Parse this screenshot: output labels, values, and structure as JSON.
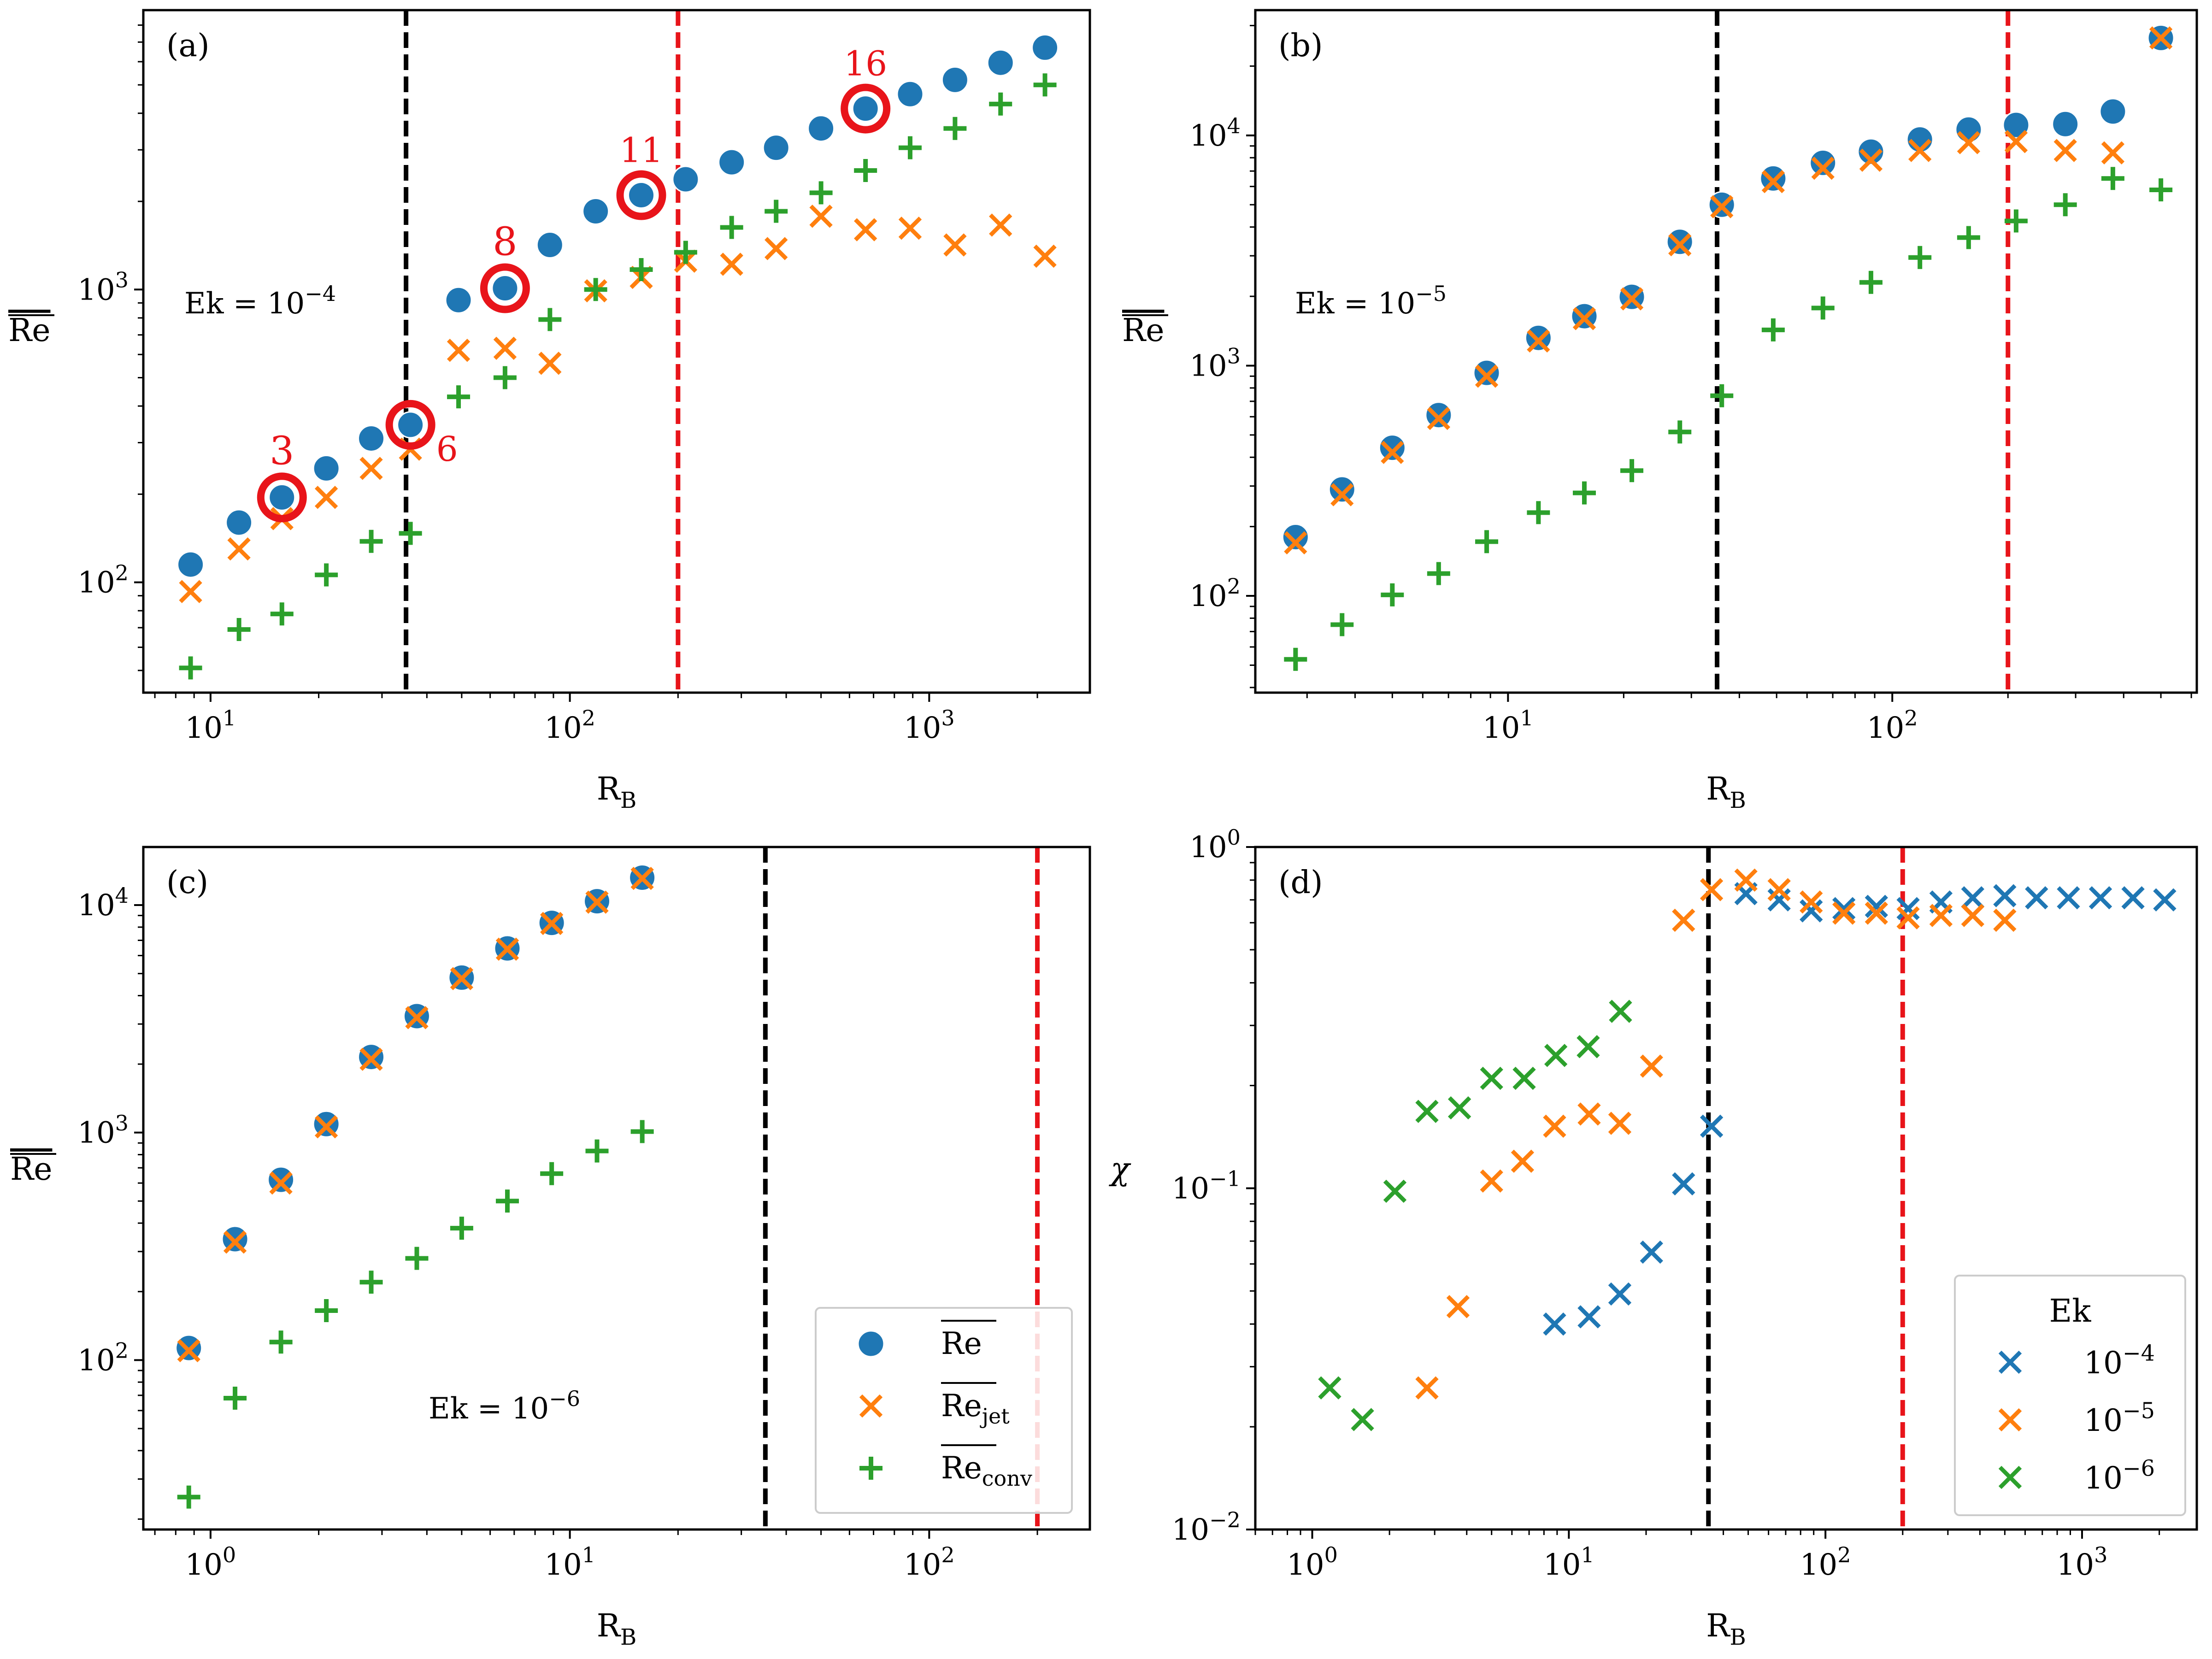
{
  "colors": {
    "blue": "#1f77b4",
    "orange": "#ff7f0e",
    "green": "#2ca02c",
    "red": "#e8141a",
    "black": "#000000"
  },
  "common": {
    "x_label": "R",
    "x_label_sub": "B",
    "black_line_x": 35,
    "red_line_x": 200
  },
  "chart_data": [
    {
      "id": "a",
      "panel_label": "(a)",
      "type": "scatter",
      "x_scale": "log",
      "y_scale": "log",
      "xlim": [
        6.5,
        2800
      ],
      "ylim": [
        42,
        9000
      ],
      "ylabel": "Re",
      "ylabel_overline": true,
      "x_ticks": [
        {
          "value": 10,
          "base": "10",
          "exp": "1"
        },
        {
          "value": 100,
          "base": "10",
          "exp": "2"
        },
        {
          "value": 1000,
          "base": "10",
          "exp": "3"
        }
      ],
      "y_ticks": [
        {
          "value": 100,
          "base": "10",
          "exp": "2"
        },
        {
          "value": 1000,
          "base": "10",
          "exp": "3"
        }
      ],
      "ek_text": {
        "prefix": "Ek = 10",
        "exp": "−4"
      },
      "series": [
        {
          "name": "Re",
          "marker": "o",
          "color": "blue",
          "x": [
            8.8,
            12,
            15.8,
            21,
            28,
            36,
            49,
            66,
            88,
            118,
            158,
            210,
            282,
            375,
            500,
            665,
            885,
            1180,
            1580,
            2100
          ],
          "y": [
            115,
            160,
            195,
            245,
            310,
            345,
            920,
            1010,
            1420,
            1850,
            2100,
            2380,
            2720,
            3050,
            3550,
            4150,
            4650,
            5200,
            5950,
            6700
          ]
        },
        {
          "name": "Re_jet",
          "marker": "x",
          "color": "orange",
          "x": [
            8.8,
            12,
            15.8,
            21,
            28,
            36,
            49,
            66,
            88,
            118,
            158,
            210,
            282,
            375,
            500,
            665,
            885,
            1180,
            1580,
            2100
          ],
          "y": [
            93,
            130,
            165,
            195,
            245,
            285,
            620,
            630,
            560,
            990,
            1100,
            1250,
            1220,
            1380,
            1780,
            1600,
            1620,
            1420,
            1660,
            1300
          ]
        },
        {
          "name": "Re_conv",
          "marker": "+",
          "color": "green",
          "x": [
            8.8,
            12,
            15.8,
            21,
            28,
            36,
            49,
            66,
            88,
            118,
            158,
            210,
            282,
            375,
            500,
            665,
            885,
            1180,
            1580,
            2100
          ],
          "y": [
            51,
            69,
            78,
            106,
            138,
            147,
            430,
            500,
            790,
            1000,
            1170,
            1340,
            1630,
            1850,
            2140,
            2550,
            3050,
            3550,
            4300,
            5000
          ]
        }
      ],
      "highlights": [
        {
          "x": 15.8,
          "y": 195,
          "label": "3",
          "pos": "above"
        },
        {
          "x": 36,
          "y": 345,
          "label": "6",
          "pos": "below-right"
        },
        {
          "x": 66,
          "y": 1010,
          "label": "8",
          "pos": "above"
        },
        {
          "x": 158,
          "y": 2100,
          "label": "11",
          "pos": "above"
        },
        {
          "x": 665,
          "y": 4150,
          "label": "16",
          "pos": "above"
        }
      ]
    },
    {
      "id": "b",
      "panel_label": "(b)",
      "type": "scatter",
      "x_scale": "log",
      "y_scale": "log",
      "xlim": [
        2.2,
        620
      ],
      "ylim": [
        38,
        35000
      ],
      "ylabel": "Re",
      "ylabel_overline": true,
      "x_ticks": [
        {
          "value": 10,
          "base": "10",
          "exp": "1"
        },
        {
          "value": 100,
          "base": "10",
          "exp": "2"
        }
      ],
      "y_ticks": [
        {
          "value": 100,
          "base": "10",
          "exp": "2"
        },
        {
          "value": 1000,
          "base": "10",
          "exp": "3"
        },
        {
          "value": 10000,
          "base": "10",
          "exp": "4"
        }
      ],
      "ek_text": {
        "prefix": "Ek = 10",
        "exp": "−5"
      },
      "series": [
        {
          "name": "Re",
          "marker": "o",
          "color": "blue",
          "x": [
            2.8,
            3.7,
            5,
            6.6,
            8.8,
            12,
            15.8,
            21,
            28,
            36,
            49,
            66,
            88,
            118,
            158,
            210,
            282,
            375,
            500
          ],
          "y": [
            180,
            290,
            440,
            610,
            930,
            1320,
            1640,
            1990,
            3450,
            5000,
            6500,
            7600,
            8500,
            9600,
            10600,
            11100,
            11200,
            12700,
            26500
          ]
        },
        {
          "name": "Re_jet",
          "marker": "x",
          "color": "orange",
          "x": [
            2.8,
            3.7,
            5,
            6.6,
            8.8,
            12,
            15.8,
            21,
            28,
            36,
            49,
            66,
            88,
            118,
            158,
            210,
            282,
            375,
            500
          ],
          "y": [
            170,
            275,
            420,
            590,
            900,
            1280,
            1600,
            1950,
            3350,
            4900,
            6300,
            7200,
            7800,
            8600,
            9300,
            9400,
            8600,
            8400,
            26500
          ]
        },
        {
          "name": "Re_conv",
          "marker": "+",
          "color": "green",
          "x": [
            2.8,
            3.7,
            5,
            6.6,
            8.8,
            12,
            15.8,
            21,
            28,
            36,
            49,
            66,
            88,
            118,
            158,
            210,
            282,
            375,
            500
          ],
          "y": [
            53,
            75,
            101,
            125,
            172,
            230,
            280,
            350,
            515,
            740,
            1430,
            1780,
            2300,
            2950,
            3600,
            4250,
            5000,
            6500,
            5800
          ]
        }
      ]
    },
    {
      "id": "c",
      "panel_label": "(c)",
      "type": "scatter",
      "x_scale": "log",
      "y_scale": "log",
      "xlim": [
        0.65,
        280
      ],
      "ylim": [
        18,
        18000
      ],
      "ylabel": "Re",
      "ylabel_overline": true,
      "x_ticks": [
        {
          "value": 1,
          "base": "10",
          "exp": "0"
        },
        {
          "value": 10,
          "base": "10",
          "exp": "1"
        },
        {
          "value": 100,
          "base": "10",
          "exp": "2"
        }
      ],
      "y_ticks": [
        {
          "value": 100,
          "base": "10",
          "exp": "2"
        },
        {
          "value": 1000,
          "base": "10",
          "exp": "3"
        },
        {
          "value": 10000,
          "base": "10",
          "exp": "4"
        }
      ],
      "ek_text": {
        "prefix": "Ek = 10",
        "exp": "−6"
      },
      "series": [
        {
          "name": "Re",
          "marker": "o",
          "color": "blue",
          "x": [
            0.87,
            1.17,
            1.57,
            2.1,
            2.8,
            3.75,
            5,
            6.7,
            8.9,
            11.9,
            15.9
          ],
          "y": [
            113,
            340,
            620,
            1090,
            2150,
            3250,
            4800,
            6450,
            8350,
            10400,
            13200
          ]
        },
        {
          "name": "Re_jet",
          "marker": "x",
          "color": "orange",
          "x": [
            0.87,
            1.17,
            1.57,
            2.1,
            2.8,
            3.75,
            5,
            6.7,
            8.9,
            11.9,
            15.9
          ],
          "y": [
            110,
            330,
            600,
            1060,
            2100,
            3200,
            4750,
            6400,
            8300,
            10300,
            13100
          ]
        },
        {
          "name": "Re_conv",
          "marker": "+",
          "color": "green",
          "x": [
            0.87,
            1.17,
            1.57,
            2.1,
            2.8,
            3.75,
            5,
            6.7,
            8.9,
            11.9,
            15.9
          ],
          "y": [
            25,
            68,
            120,
            165,
            220,
            280,
            380,
            500,
            660,
            830,
            1010
          ]
        }
      ],
      "legend": {
        "location": "lower-right",
        "entries": [
          {
            "marker": "o",
            "color": "blue",
            "label": "Re",
            "sub": ""
          },
          {
            "marker": "x",
            "color": "orange",
            "label": "Re",
            "sub": "jet"
          },
          {
            "marker": "+",
            "color": "green",
            "label": "Re",
            "sub": "conv"
          }
        ]
      }
    },
    {
      "id": "d",
      "panel_label": "(d)",
      "type": "scatter",
      "x_scale": "log",
      "y_scale": "log",
      "xlim": [
        0.6,
        2800
      ],
      "ylim": [
        0.01,
        1.0
      ],
      "ylabel": "χ",
      "ylabel_overline": false,
      "x_ticks": [
        {
          "value": 1,
          "base": "10",
          "exp": "0"
        },
        {
          "value": 10,
          "base": "10",
          "exp": "1"
        },
        {
          "value": 100,
          "base": "10",
          "exp": "2"
        },
        {
          "value": 1000,
          "base": "10",
          "exp": "3"
        }
      ],
      "y_ticks": [
        {
          "value": 0.01,
          "base": "10",
          "exp": "−2"
        },
        {
          "value": 0.1,
          "base": "10",
          "exp": "−1"
        },
        {
          "value": 1,
          "base": "10",
          "exp": "0"
        }
      ],
      "series": [
        {
          "name": "Ek 10^-4",
          "marker": "x",
          "color": "blue",
          "x": [
            8.8,
            12,
            15.8,
            21,
            28,
            36,
            49,
            66,
            88,
            118,
            158,
            210,
            282,
            375,
            500,
            665,
            885,
            1180,
            1580,
            2100
          ],
          "y": [
            0.04,
            0.042,
            0.049,
            0.065,
            0.103,
            0.152,
            0.73,
            0.7,
            0.65,
            0.66,
            0.67,
            0.66,
            0.69,
            0.71,
            0.72,
            0.71,
            0.71,
            0.71,
            0.71,
            0.7
          ]
        },
        {
          "name": "Ek 10^-5",
          "marker": "x",
          "color": "orange",
          "x": [
            2.8,
            3.7,
            5,
            6.6,
            8.8,
            12,
            15.8,
            21,
            28,
            36,
            49,
            66,
            88,
            118,
            158,
            210,
            282,
            375,
            500
          ],
          "y": [
            0.026,
            0.045,
            0.105,
            0.12,
            0.152,
            0.165,
            0.155,
            0.228,
            0.61,
            0.75,
            0.8,
            0.75,
            0.69,
            0.64,
            0.64,
            0.62,
            0.63,
            0.63,
            0.61
          ]
        },
        {
          "name": "Ek 10^-6",
          "marker": "x",
          "color": "green",
          "x": [
            1.17,
            1.57,
            2.1,
            2.8,
            3.75,
            5,
            6.7,
            8.9,
            11.9,
            15.9
          ],
          "y": [
            0.026,
            0.021,
            0.098,
            0.168,
            0.172,
            0.21,
            0.21,
            0.245,
            0.26,
            0.33
          ]
        }
      ],
      "legend": {
        "location": "lower-right",
        "title": "Ek",
        "entries": [
          {
            "marker": "x",
            "color": "blue",
            "base": "10",
            "exp": "−4"
          },
          {
            "marker": "x",
            "color": "orange",
            "base": "10",
            "exp": "−5"
          },
          {
            "marker": "x",
            "color": "green",
            "base": "10",
            "exp": "−6"
          }
        ]
      }
    }
  ]
}
